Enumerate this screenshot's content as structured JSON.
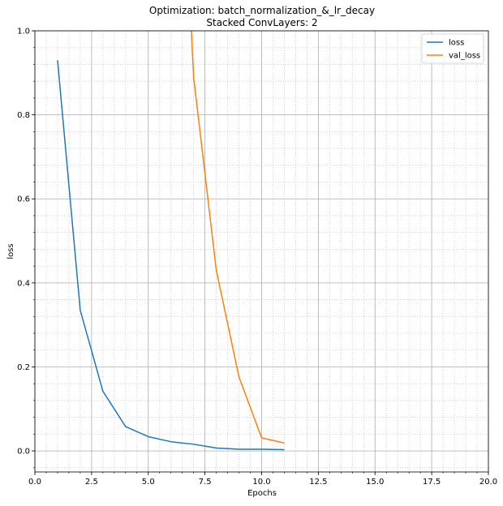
{
  "chart_data": {
    "type": "line",
    "title": "Optimization: batch_normalization_&_lr_decay",
    "subtitle": "Stacked ConvLayers: 2",
    "xlabel": "Epochs",
    "ylabel": "loss",
    "xlim": [
      0,
      20
    ],
    "ylim": [
      -0.05,
      1.0
    ],
    "x_ticks": [
      "0.0",
      "2.5",
      "5.0",
      "7.5",
      "10.0",
      "12.5",
      "15.0",
      "17.5",
      "20.0"
    ],
    "x_tick_values": [
      0,
      2.5,
      5,
      7.5,
      10,
      12.5,
      15,
      17.5,
      20
    ],
    "y_ticks": [
      "0.0",
      "0.2",
      "0.4",
      "0.6",
      "0.8",
      "1.0"
    ],
    "y_tick_values": [
      0,
      0.2,
      0.4,
      0.6,
      0.8,
      1.0
    ],
    "grid": true,
    "minor_grid": true,
    "legend_position": "top-right",
    "series": [
      {
        "name": "loss",
        "color": "#1f77b4",
        "x": [
          1,
          2,
          3,
          4,
          5,
          6,
          7,
          8,
          9,
          10,
          11
        ],
        "y": [
          0.93,
          0.335,
          0.142,
          0.058,
          0.034,
          0.022,
          0.016,
          0.007,
          0.004,
          0.004,
          0.003
        ]
      },
      {
        "name": "val_loss",
        "color": "#ff7f0e",
        "x": [
          6.9,
          7,
          8,
          9,
          10,
          11
        ],
        "y": [
          1.0,
          0.89,
          0.43,
          0.176,
          0.031,
          0.019
        ]
      }
    ]
  }
}
